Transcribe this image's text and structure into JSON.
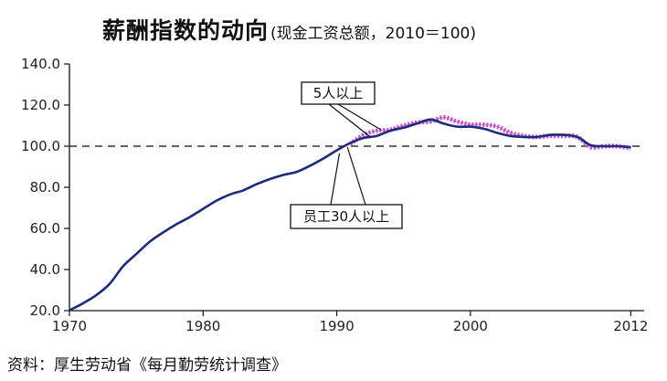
{
  "title": {
    "main": "薪酬指数的动向",
    "sub": "(现金工资总额，2010＝100)"
  },
  "source": "资料：厚生劳动省《每月勤劳统计调查》",
  "chart_data": {
    "type": "line",
    "ylim": [
      20,
      140
    ],
    "xlim": [
      1970,
      2013
    ],
    "y_ticks": [
      "20.0",
      "40.0",
      "60.0",
      "80.0",
      "100.0",
      "120.0",
      "140.0"
    ],
    "x_ticks": [
      "1970",
      "1980",
      "1990",
      "2000",
      "2012"
    ],
    "reference_line": {
      "y": 100,
      "style": "dashed"
    },
    "series": [
      {
        "name": "员工30人以上",
        "color": "#1f2a7a",
        "x": [
          1970,
          1971,
          1972,
          1973,
          1974,
          1975,
          1976,
          1977,
          1978,
          1979,
          1980,
          1981,
          1982,
          1983,
          1984,
          1985,
          1986,
          1987,
          1988,
          1989,
          1990,
          1991,
          1992,
          1993,
          1994,
          1995,
          1996,
          1997,
          1998,
          1999,
          2000,
          2001,
          2002,
          2003,
          2004,
          2005,
          2006,
          2007,
          2008,
          2009,
          2010,
          2011,
          2012
        ],
        "y": [
          20.2,
          23.5,
          27.5,
          33.0,
          41.5,
          47.5,
          53.5,
          58.0,
          62.0,
          65.5,
          69.5,
          73.5,
          76.5,
          78.5,
          81.5,
          84.0,
          86.0,
          87.5,
          90.5,
          94.0,
          98.0,
          101.5,
          104.0,
          105.0,
          107.5,
          109.0,
          111.0,
          113.0,
          111.0,
          109.5,
          109.5,
          108.5,
          106.5,
          105.0,
          104.5,
          104.5,
          105.5,
          105.5,
          104.5,
          100.5,
          100.0,
          100.0,
          99.5
        ]
      },
      {
        "name": "5人以上",
        "color": "#c85ec8",
        "x": [
          1991,
          1992,
          1993,
          1994,
          1995,
          1996,
          1997,
          1998,
          1999,
          2000,
          2001,
          2002,
          2003,
          2004,
          2005,
          2006,
          2007,
          2008,
          2009,
          2010,
          2011,
          2012
        ],
        "y": [
          101.0,
          105.5,
          107.5,
          108.0,
          110.0,
          111.5,
          112.0,
          114.0,
          112.0,
          110.5,
          110.5,
          109.5,
          106.5,
          105.0,
          104.5,
          105.0,
          105.0,
          104.5,
          99.5,
          100.0,
          100.0,
          99.0
        ]
      }
    ],
    "annotations": [
      "5人以上",
      "员工30人以上"
    ]
  }
}
